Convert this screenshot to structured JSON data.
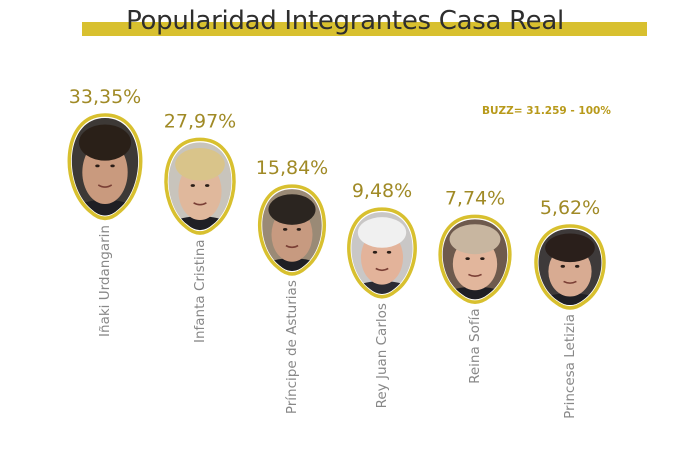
{
  "title": "Popularidad Integrantes Casa Real",
  "buzz_note": "BUZZ= 31.259 - 100%",
  "colors": {
    "accent_bar": "#d8c02f",
    "percent_text": "#a08a26",
    "frame_outline": "#d8c02f",
    "name_text": "#888888"
  },
  "chart_data": {
    "type": "scatter",
    "categories": [
      "Iñaki Urdangarin",
      "Infanta Cristina",
      "Príncipe de Asturias",
      "Rey Juan Carlos",
      "Reina Sofía",
      "Princesa Letizia"
    ],
    "values": [
      33.35,
      27.97,
      15.84,
      9.48,
      7.74,
      5.62
    ],
    "value_labels": [
      "33,35%",
      "27,97%",
      "15,84%",
      "9,48%",
      "7,74%",
      "5,62%"
    ],
    "marker": "portrait-photo",
    "xlabel": "",
    "ylabel": "",
    "grid": false,
    "legend": "none"
  }
}
